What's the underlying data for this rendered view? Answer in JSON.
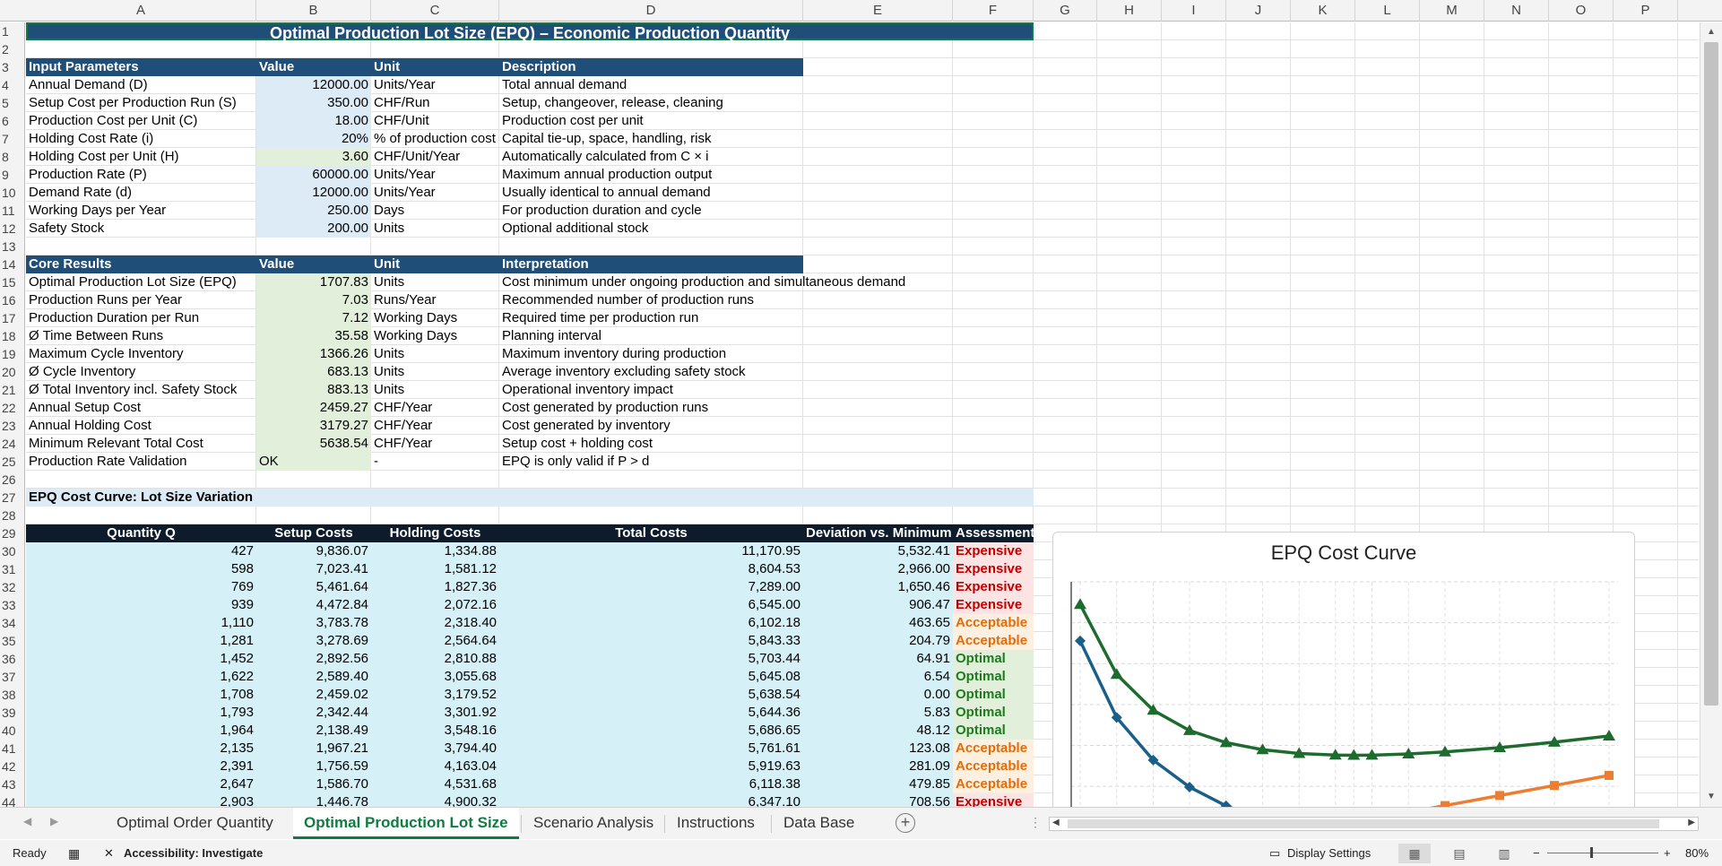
{
  "columns": [
    "A",
    "B",
    "C",
    "D",
    "E",
    "F",
    "G",
    "H",
    "I",
    "J",
    "K",
    "L",
    "M",
    "N",
    "O",
    "P"
  ],
  "title": "Optimal Production Lot Size (EPQ) – Economic Production Quantity",
  "inputs": {
    "headers": [
      "Input Parameters",
      "Value",
      "Unit",
      "Description"
    ],
    "rows": [
      {
        "name": "Annual Demand (D)",
        "value": "12000.00",
        "unit": "Units/Year",
        "desc": "Total annual demand",
        "style": "inblue"
      },
      {
        "name": "Setup Cost per Production Run (S)",
        "value": "350.00",
        "unit": "CHF/Run",
        "desc": "Setup, changeover, release, cleaning",
        "style": "inblue"
      },
      {
        "name": "Production Cost per Unit (C)",
        "value": "18.00",
        "unit": "CHF/Unit",
        "desc": "Production cost per unit",
        "style": "inblue"
      },
      {
        "name": "Holding Cost Rate (i)",
        "value": "20%",
        "unit": "% of production cost",
        "desc": "Capital tie-up, space, handling, risk",
        "style": "inblue"
      },
      {
        "name": "Holding Cost per Unit (H)",
        "value": "3.60",
        "unit": "CHF/Unit/Year",
        "desc": "Automatically calculated from C × i",
        "style": "ingreen"
      },
      {
        "name": "Production Rate (P)",
        "value": "60000.00",
        "unit": "Units/Year",
        "desc": "Maximum annual production output",
        "style": "inblue"
      },
      {
        "name": "Demand Rate (d)",
        "value": "12000.00",
        "unit": "Units/Year",
        "desc": "Usually identical to annual demand",
        "style": "inblue"
      },
      {
        "name": "Working Days per Year",
        "value": "250.00",
        "unit": "Days",
        "desc": "For production duration and cycle",
        "style": "inblue"
      },
      {
        "name": "Safety Stock",
        "value": "200.00",
        "unit": "Units",
        "desc": "Optional additional stock",
        "style": "inblue"
      }
    ]
  },
  "results": {
    "headers": [
      "Core Results",
      "Value",
      "Unit",
      "Interpretation"
    ],
    "rows": [
      {
        "name": "Optimal Production Lot Size (EPQ)",
        "value": "1707.83",
        "unit": "Units",
        "desc": "Cost minimum under ongoing production and simultaneous demand"
      },
      {
        "name": "Production Runs per Year",
        "value": "7.03",
        "unit": "Runs/Year",
        "desc": "Recommended number of production runs"
      },
      {
        "name": "Production Duration per Run",
        "value": "7.12",
        "unit": "Working Days",
        "desc": "Required time per production run"
      },
      {
        "name": "Ø Time Between Runs",
        "value": "35.58",
        "unit": "Working Days",
        "desc": "Planning interval"
      },
      {
        "name": "Maximum Cycle Inventory",
        "value": "1366.26",
        "unit": "Units",
        "desc": "Maximum inventory during production"
      },
      {
        "name": "Ø Cycle Inventory",
        "value": "683.13",
        "unit": "Units",
        "desc": "Average inventory excluding safety stock"
      },
      {
        "name": "Ø Total Inventory incl. Safety Stock",
        "value": "883.13",
        "unit": "Units",
        "desc": "Operational inventory impact"
      },
      {
        "name": "Annual Setup Cost",
        "value": "2459.27",
        "unit": "CHF/Year",
        "desc": "Cost generated by production runs"
      },
      {
        "name": "Annual Holding Cost",
        "value": "3179.27",
        "unit": "CHF/Year",
        "desc": "Cost generated by inventory"
      },
      {
        "name": "Minimum Relevant Total Cost",
        "value": "5638.54",
        "unit": "CHF/Year",
        "desc": "Setup cost + holding cost"
      },
      {
        "name": "Production Rate Validation",
        "value": "OK",
        "unit": "-",
        "desc": "EPQ is only valid if P > d",
        "left": true
      }
    ]
  },
  "curve_section_title": "EPQ Cost Curve: Lot Size Variation",
  "curve_table": {
    "headers": [
      "Quantity Q",
      "Setup Costs",
      "Holding Costs",
      "Total Costs",
      "Deviation vs. Minimum",
      "Assessment"
    ],
    "rows": [
      [
        "427",
        "9,836.07",
        "1,334.88",
        "11,170.95",
        "5,532.41",
        "Expensive"
      ],
      [
        "598",
        "7,023.41",
        "1,581.12",
        "8,604.53",
        "2,966.00",
        "Expensive"
      ],
      [
        "769",
        "5,461.64",
        "1,827.36",
        "7,289.00",
        "1,650.46",
        "Expensive"
      ],
      [
        "939",
        "4,472.84",
        "2,072.16",
        "6,545.00",
        "906.47",
        "Expensive"
      ],
      [
        "1,110",
        "3,783.78",
        "2,318.40",
        "6,102.18",
        "463.65",
        "Acceptable"
      ],
      [
        "1,281",
        "3,278.69",
        "2,564.64",
        "5,843.33",
        "204.79",
        "Acceptable"
      ],
      [
        "1,452",
        "2,892.56",
        "2,810.88",
        "5,703.44",
        "64.91",
        "Optimal"
      ],
      [
        "1,622",
        "2,589.40",
        "3,055.68",
        "5,645.08",
        "6.54",
        "Optimal"
      ],
      [
        "1,708",
        "2,459.02",
        "3,179.52",
        "5,638.54",
        "0.00",
        "Optimal"
      ],
      [
        "1,793",
        "2,342.44",
        "3,301.92",
        "5,644.36",
        "5.83",
        "Optimal"
      ],
      [
        "1,964",
        "2,138.49",
        "3,548.16",
        "5,686.65",
        "48.12",
        "Optimal"
      ],
      [
        "2,135",
        "1,967.21",
        "3,794.40",
        "5,761.61",
        "123.08",
        "Acceptable"
      ],
      [
        "2,391",
        "1,756.59",
        "4,163.04",
        "5,919.63",
        "281.09",
        "Acceptable"
      ],
      [
        "2,647",
        "1,586.70",
        "4,531.68",
        "6,118.38",
        "479.85",
        "Acceptable"
      ],
      [
        "2,903",
        "1,446.78",
        "4,900.32",
        "6,347.10",
        "708.56",
        "Expensive"
      ]
    ]
  },
  "chart_data": {
    "type": "line",
    "title": "EPQ Cost Curve",
    "x": [
      427,
      598,
      769,
      939,
      1110,
      1281,
      1452,
      1622,
      1708,
      1793,
      1964,
      2135,
      2391,
      2647,
      2903
    ],
    "series": [
      {
        "name": "Setup Costs",
        "color": "#1a5f8a",
        "marker": "diamond",
        "values": [
          9836.07,
          7023.41,
          5461.64,
          4472.84,
          3783.78,
          3278.69,
          2892.56,
          2589.4,
          2459.02,
          2342.44,
          2138.49,
          1967.21,
          1756.59,
          1586.7,
          1446.78
        ]
      },
      {
        "name": "Holding Costs",
        "color": "#ed7d31",
        "marker": "square",
        "values": [
          1334.88,
          1581.12,
          1827.36,
          2072.16,
          2318.4,
          2564.64,
          2810.88,
          3055.68,
          3179.52,
          3301.92,
          3548.16,
          3794.4,
          4163.04,
          4531.68,
          4900.32
        ]
      },
      {
        "name": "Total Costs",
        "color": "#1e6b2e",
        "marker": "triangle",
        "values": [
          11170.95,
          8604.53,
          7289.0,
          6545.0,
          6102.18,
          5843.33,
          5703.44,
          5645.08,
          5638.54,
          5644.36,
          5686.65,
          5761.61,
          5919.63,
          6118.38,
          6347.1
        ]
      }
    ],
    "grid": true
  },
  "tabs": [
    "Optimal Order Quantity",
    "Optimal Production Lot Size",
    "Scenario Analysis",
    "Instructions",
    "Data Base"
  ],
  "active_tab": "Optimal Production Lot Size",
  "status": {
    "ready": "Ready",
    "accessibility": "Accessibility: Investigate",
    "display_settings": "Display Settings",
    "zoom": "80%"
  }
}
